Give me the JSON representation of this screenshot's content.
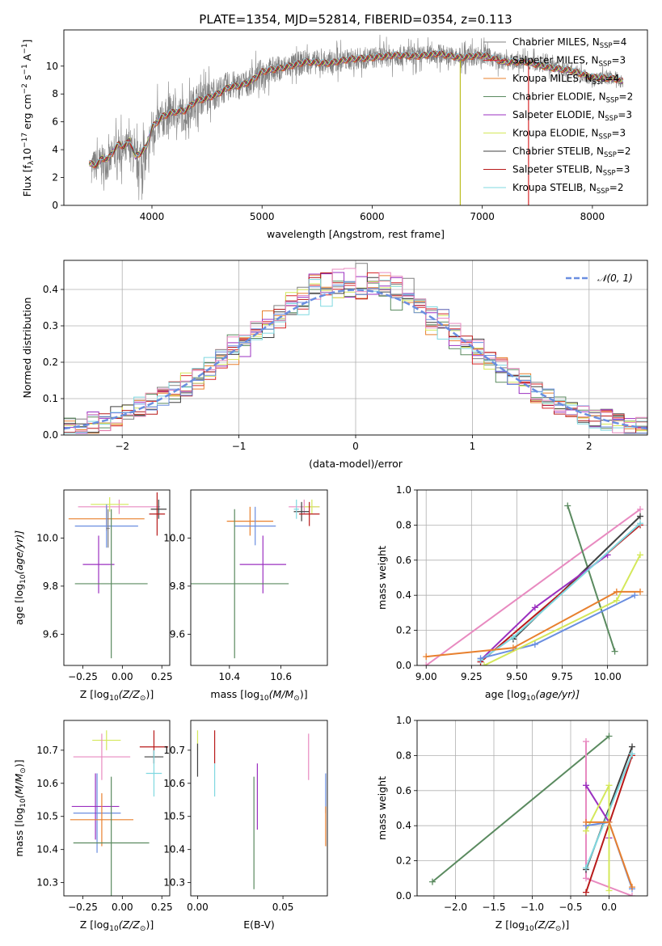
{
  "chart_data": [
    {
      "type": "line",
      "title": "PLATE=1354, MJD=52814, FIBERID=0354, z=0.113",
      "xlabel": "wavelength [Angstrom, rest frame]",
      "ylabel_parts": [
        "Flux [f",
        "λ",
        "10",
        "−17",
        " erg cm",
        "−2",
        " s",
        "−1",
        " A",
        "−1",
        "]"
      ],
      "xlim": [
        3200,
        8500
      ],
      "ylim": [
        0,
        12.6
      ],
      "xticks": [
        4000,
        5000,
        6000,
        7000,
        8000
      ],
      "yticks": [
        0,
        2,
        4,
        6,
        8,
        10
      ],
      "data_color": "#808080",
      "data_spectrum": {
        "x": [
          3450,
          3500,
          3550,
          3600,
          3650,
          3700,
          3750,
          3800,
          3850,
          3900,
          3950,
          4000,
          4100,
          4200,
          4300,
          4400,
          4500,
          4600,
          4700,
          4800,
          4900,
          5000,
          5200,
          5400,
          5600,
          5800,
          6000,
          6200,
          6400,
          6600,
          6800,
          7000,
          7200,
          7400,
          7600,
          7800,
          8000,
          8200,
          8280
        ],
        "y": [
          2.8,
          2.9,
          3.2,
          3.0,
          3.6,
          4.2,
          3.8,
          4.4,
          3.0,
          3.5,
          3.3,
          5.5,
          6.2,
          6.7,
          6.5,
          7.6,
          7.8,
          8.1,
          8.6,
          8.6,
          8.9,
          9.6,
          9.9,
          10.3,
          10.2,
          10.5,
          10.6,
          10.8,
          10.7,
          10.9,
          10.6,
          10.8,
          10.3,
          10.3,
          10.0,
          9.7,
          9.1,
          9.2,
          8.8
        ],
        "noise": [
          1.2,
          1.2,
          1.2,
          1.3,
          1.3,
          1.3,
          1.2,
          1.3,
          1.4,
          1.8,
          1.6,
          1.5,
          1.4,
          1.3,
          1.3,
          1.2,
          1.2,
          1.1,
          1.1,
          1.0,
          1.0,
          1.0,
          0.9,
          0.9,
          0.8,
          0.8,
          0.8,
          0.8,
          0.7,
          0.7,
          0.7,
          0.7,
          0.6,
          0.6,
          0.5,
          0.5,
          0.5,
          0.5,
          0.5
        ]
      },
      "model": {
        "x": [
          3430,
          3500,
          3550,
          3600,
          3650,
          3700,
          3750,
          3800,
          3850,
          3900,
          3950,
          4000,
          4100,
          4200,
          4300,
          4400,
          4500,
          4600,
          4700,
          4800,
          4900,
          5000,
          5200,
          5400,
          5600,
          5800,
          6000,
          6200,
          6400,
          6600,
          6800,
          7000,
          7200,
          7400,
          7600,
          7800,
          8000,
          8200,
          8280
        ],
        "y": [
          3.0,
          2.9,
          3.4,
          3.3,
          3.9,
          4.4,
          4.2,
          4.7,
          3.5,
          3.8,
          4.2,
          5.6,
          6.4,
          6.7,
          6.8,
          7.5,
          7.7,
          8.0,
          8.5,
          8.6,
          8.9,
          9.6,
          9.9,
          10.3,
          10.2,
          10.5,
          10.6,
          10.8,
          10.7,
          10.9,
          10.6,
          10.8,
          10.3,
          10.3,
          9.9,
          9.7,
          9.2,
          9.1,
          8.9
        ]
      },
      "glitches": [
        {
          "x": 6800,
          "y_low": 0,
          "y_high": 10.6,
          "color": "#bcbd22"
        },
        {
          "x": 7420,
          "y_low": 0,
          "y_high": 10.3,
          "color": "#d62728"
        }
      ],
      "series": [
        {
          "name": "Chabrier MILES, N",
          "sub": "SSP",
          "suffix": "=4",
          "color": "#808080"
        },
        {
          "name": "Salpeter MILES, N",
          "sub": "SSP",
          "suffix": "=3",
          "color": "#d62728"
        },
        {
          "name": "Kroupa MILES, N",
          "sub": "SSP",
          "suffix": "=4",
          "color": "#e8802e"
        },
        {
          "name": "Chabrier ELODIE, N",
          "sub": "SSP",
          "suffix": "=2",
          "color": "#5a8a5f"
        },
        {
          "name": "Salpeter ELODIE, N",
          "sub": "SSP",
          "suffix": "=3",
          "color": "#9b30c0"
        },
        {
          "name": "Kroupa ELODIE, N",
          "sub": "SSP",
          "suffix": "=3",
          "color": "#d4e85a"
        },
        {
          "name": "Chabrier STELIB, N",
          "sub": "SSP",
          "suffix": "=2",
          "color": "#404040"
        },
        {
          "name": "Salpeter STELIB, N",
          "sub": "SSP",
          "suffix": "=3",
          "color": "#b81a1a"
        },
        {
          "name": "Kroupa STELIB, N",
          "sub": "SSP",
          "suffix": "=2",
          "color": "#7fd8e0"
        }
      ]
    },
    {
      "type": "histogram",
      "xlabel": "(data-model)/error",
      "ylabel": "Normed distribution",
      "xlim": [
        -2.5,
        2.5
      ],
      "ylim": [
        0,
        0.48
      ],
      "xticks": [
        -2,
        -1,
        0,
        1,
        2
      ],
      "xtick_labels": [
        "−2",
        "−1",
        "0",
        "1",
        "2"
      ],
      "yticks": [
        0.0,
        0.1,
        0.2,
        0.3,
        0.4
      ],
      "grid": true,
      "bin_start": -2.5,
      "bin_width": 0.1,
      "colors": [
        "#808080",
        "#d62728",
        "#e8802e",
        "#5a8a5f",
        "#9b30c0",
        "#d4e85a",
        "#404040",
        "#b81a1a",
        "#7fd8e0",
        "#6a8ee0",
        "#e88ac0"
      ],
      "gaussian": {
        "label": "𝒩(0, 1)",
        "mean": 0,
        "sigma": 1,
        "color": "#6a8ee0"
      },
      "legend_loc": "upper right"
    },
    {
      "type": "scatter",
      "xlabel": "Z [log",
      "xlabel_sub": "10",
      "xlabel_tail": "(Z/Z",
      "xlabel_odot": "⊙",
      "xlabel_end": ")]",
      "ylabel": "age  [log",
      "ylabel_sub": "10",
      "ylabel_tail": "(age/yr)]",
      "xlim": [
        -0.37,
        0.3
      ],
      "ylim": [
        9.47,
        10.2
      ],
      "xticks": [
        -0.25,
        0.0,
        0.25
      ],
      "xtick_labels": [
        "−0.25",
        "0.00",
        "0.25"
      ],
      "yticks": [
        9.6,
        9.8,
        10.0
      ],
      "points": [
        {
          "x": -0.02,
          "y": 10.13,
          "xerr": 0.26,
          "yerr": 0.03,
          "color": "#e88ac0"
        },
        {
          "x": -0.08,
          "y": 10.14,
          "xerr": 0.12,
          "yerr": 0.03,
          "color": "#d4e85a"
        },
        {
          "x": -0.1,
          "y": 10.08,
          "xerr": 0.24,
          "yerr": 0.05,
          "color": "#e8802e"
        },
        {
          "x": -0.1,
          "y": 10.05,
          "xerr": 0.2,
          "yerr": 0.09,
          "color": "#6a8ee0"
        },
        {
          "x": 0.23,
          "y": 10.12,
          "xerr": 0.05,
          "yerr": 0.04,
          "color": "#404040"
        },
        {
          "x": 0.22,
          "y": 10.1,
          "xerr": 0.05,
          "yerr": 0.09,
          "color": "#b81a1a"
        },
        {
          "x": -0.09,
          "y": 10.04,
          "xerr": 0.01,
          "yerr": 0.08,
          "color": "#808080"
        },
        {
          "x": -0.15,
          "y": 9.89,
          "xerr": 0.1,
          "yerr": 0.12,
          "color": "#9b30c0"
        },
        {
          "x": -0.07,
          "y": 9.81,
          "xerr": 0.23,
          "yerr": 0.31,
          "color": "#5a8a5f"
        }
      ]
    },
    {
      "type": "scatter",
      "xlabel": "mass [log",
      "xlabel_sub": "10",
      "xlabel_tail": "(M/M",
      "xlabel_odot": "⊙",
      "xlabel_end": ")]",
      "xlim": [
        10.25,
        10.78
      ],
      "ylim": [
        9.47,
        10.2
      ],
      "xticks": [
        10.4,
        10.6
      ],
      "xtick_labels": [
        "10.4",
        "10.6"
      ],
      "yticks": [
        9.6,
        9.8,
        10.0
      ],
      "points": [
        {
          "x": 10.69,
          "y": 10.13,
          "xerr": 0.06,
          "yerr": 0.03,
          "color": "#e88ac0"
        },
        {
          "x": 10.72,
          "y": 10.13,
          "xerr": 0.03,
          "yerr": 0.03,
          "color": "#d4e85a"
        },
        {
          "x": 10.48,
          "y": 10.07,
          "xerr": 0.09,
          "yerr": 0.06,
          "color": "#e8802e"
        },
        {
          "x": 10.5,
          "y": 10.05,
          "xerr": 0.08,
          "yerr": 0.08,
          "color": "#6a8ee0"
        },
        {
          "x": 10.68,
          "y": 10.11,
          "xerr": 0.03,
          "yerr": 0.04,
          "color": "#404040"
        },
        {
          "x": 10.71,
          "y": 10.1,
          "xerr": 0.04,
          "yerr": 0.05,
          "color": "#b81a1a"
        },
        {
          "x": 10.66,
          "y": 10.12,
          "xerr": 0.01,
          "yerr": 0.04,
          "color": "#7fd8e0"
        },
        {
          "x": 10.53,
          "y": 9.89,
          "xerr": 0.09,
          "yerr": 0.12,
          "color": "#9b30c0"
        },
        {
          "x": 10.42,
          "y": 9.81,
          "xerr": 0.21,
          "yerr": 0.31,
          "color": "#5a8a5f"
        }
      ]
    },
    {
      "type": "line",
      "xlabel": "age  [log",
      "xlabel_sub": "10",
      "xlabel_tail": "(age/yr)]",
      "ylabel": "mass weight",
      "xlim": [
        8.95,
        10.22
      ],
      "ylim": [
        0,
        1.0
      ],
      "xticks": [
        9.0,
        9.25,
        9.5,
        9.75,
        10.0
      ],
      "xtick_labels": [
        "9.00",
        "9.25",
        "9.50",
        "9.75",
        "10.00"
      ],
      "yticks": [
        0.0,
        0.2,
        0.4,
        0.6,
        0.8,
        1.0
      ],
      "grid": true,
      "series": [
        {
          "color": "#e88ac0",
          "x": [
            9.0,
            10.18
          ],
          "y": [
            0.0,
            0.89
          ]
        },
        {
          "color": "#5a8a5f",
          "x": [
            9.78,
            10.04
          ],
          "y": [
            0.91,
            0.08
          ]
        },
        {
          "color": "#404040",
          "x": [
            9.48,
            10.18
          ],
          "y": [
            0.15,
            0.85
          ]
        },
        {
          "color": "#b81a1a",
          "x": [
            9.3,
            10.18
          ],
          "y": [
            0.02,
            0.8
          ]
        },
        {
          "color": "#9b30c0",
          "x": [
            9.3,
            9.6,
            10.0
          ],
          "y": [
            0.03,
            0.33,
            0.63
          ]
        },
        {
          "color": "#7fd8e0",
          "x": [
            9.3,
            9.48,
            10.18
          ],
          "y": [
            0.03,
            0.16,
            0.81
          ]
        },
        {
          "color": "#6a8ee0",
          "x": [
            9.3,
            9.6,
            10.15
          ],
          "y": [
            0.04,
            0.12,
            0.4
          ]
        },
        {
          "color": "#d4e85a",
          "x": [
            9.32,
            10.05,
            10.18
          ],
          "y": [
            0.0,
            0.37,
            0.63
          ]
        },
        {
          "color": "#e8802e",
          "x": [
            9.0,
            9.48,
            10.05,
            10.18
          ],
          "y": [
            0.05,
            0.1,
            0.42,
            0.42
          ]
        }
      ]
    },
    {
      "type": "scatter",
      "xlabel": "Z [log",
      "xlabel_sub": "10",
      "xlabel_tail": "(Z/Z",
      "xlabel_odot": "⊙",
      "xlabel_end": ")]",
      "ylabel": "mass [log",
      "ylabel_sub": "10",
      "ylabel_tail": "(M/M",
      "ylabel_odot": "⊙",
      "ylabel_end": ")]",
      "xlim": [
        -0.37,
        0.3
      ],
      "ylim": [
        10.26,
        10.79
      ],
      "xticks": [
        -0.25,
        0.0,
        0.25
      ],
      "xtick_labels": [
        "−0.25",
        "0.00",
        "0.25"
      ],
      "yticks": [
        10.3,
        10.4,
        10.5,
        10.6,
        10.7
      ],
      "points": [
        {
          "x": -0.1,
          "y": 10.73,
          "xerr": 0.09,
          "yerr": 0.03,
          "color": "#d4e85a"
        },
        {
          "x": -0.13,
          "y": 10.68,
          "xerr": 0.18,
          "yerr": 0.07,
          "color": "#e88ac0"
        },
        {
          "x": 0.2,
          "y": 10.71,
          "xerr": 0.09,
          "yerr": 0.05,
          "color": "#b81a1a"
        },
        {
          "x": 0.2,
          "y": 10.68,
          "xerr": 0.06,
          "yerr": 0.02,
          "color": "#404040"
        },
        {
          "x": 0.2,
          "y": 10.63,
          "xerr": 0.05,
          "yerr": 0.07,
          "color": "#7fd8e0"
        },
        {
          "x": -0.16,
          "y": 10.51,
          "xerr": 0.15,
          "yerr": 0.12,
          "color": "#6a8ee0"
        },
        {
          "x": -0.17,
          "y": 10.53,
          "xerr": 0.15,
          "yerr": 0.1,
          "color": "#9b30c0"
        },
        {
          "x": -0.13,
          "y": 10.49,
          "xerr": 0.2,
          "yerr": 0.08,
          "color": "#e8802e"
        },
        {
          "x": -0.07,
          "y": 10.42,
          "xerr": 0.24,
          "yerr": 0.2,
          "color": "#5a8a5f"
        }
      ]
    },
    {
      "type": "scatter",
      "xlabel": "E(B-V)",
      "xlim": [
        -0.004,
        0.076
      ],
      "ylim": [
        10.26,
        10.79
      ],
      "xticks": [
        0.0,
        0.05
      ],
      "xtick_labels": [
        "0.00",
        "0.05"
      ],
      "yticks": [
        10.3,
        10.4,
        10.5,
        10.6,
        10.7
      ],
      "points": [
        {
          "x": 0.0,
          "y": 10.73,
          "xerr": 0,
          "yerr": 0.03,
          "color": "#d4e85a"
        },
        {
          "x": 0.0,
          "y": 10.67,
          "xerr": 0,
          "yerr": 0.05,
          "color": "#404040"
        },
        {
          "x": 0.01,
          "y": 10.71,
          "xerr": 0,
          "yerr": 0.05,
          "color": "#b81a1a"
        },
        {
          "x": 0.01,
          "y": 10.61,
          "xerr": 0,
          "yerr": 0.05,
          "color": "#7fd8e0"
        },
        {
          "x": 0.035,
          "y": 10.56,
          "xerr": 0,
          "yerr": 0.1,
          "color": "#9b30c0"
        },
        {
          "x": 0.033,
          "y": 10.45,
          "xerr": 0,
          "yerr": 0.17,
          "color": "#5a8a5f"
        },
        {
          "x": 0.065,
          "y": 10.68,
          "xerr": 0,
          "yerr": 0.07,
          "color": "#e88ac0"
        },
        {
          "x": 0.075,
          "y": 10.57,
          "xerr": 0,
          "yerr": 0.06,
          "color": "#6a8ee0"
        },
        {
          "x": 0.075,
          "y": 10.47,
          "xerr": 0,
          "yerr": 0.06,
          "color": "#e8802e"
        }
      ]
    },
    {
      "type": "line",
      "xlabel": "Z [log",
      "xlabel_sub": "10",
      "xlabel_tail": "(Z/Z",
      "xlabel_odot": "⊙",
      "xlabel_end": ")]",
      "ylabel": "mass weight",
      "xlim": [
        -2.5,
        0.5
      ],
      "ylim": [
        0,
        1.0
      ],
      "xticks": [
        -2.0,
        -1.5,
        -1.0,
        -0.5,
        0.0
      ],
      "xtick_labels": [
        "−2.0",
        "−1.5",
        "−1.0",
        "−0.5",
        "0.0"
      ],
      "yticks": [
        0.0,
        0.2,
        0.4,
        0.6,
        0.8,
        1.0
      ],
      "grid": true,
      "series": [
        {
          "color": "#5a8a5f",
          "x": [
            -2.3,
            0.0
          ],
          "y": [
            0.08,
            0.91
          ]
        },
        {
          "color": "#e88ac0",
          "x": [
            -0.3,
            -0.3,
            0.3
          ],
          "y": [
            0.88,
            0.1,
            0.0
          ]
        },
        {
          "color": "#404040",
          "x": [
            -0.3,
            0.3
          ],
          "y": [
            0.15,
            0.85
          ]
        },
        {
          "color": "#b81a1a",
          "x": [
            -0.3,
            0.3
          ],
          "y": [
            0.02,
            0.8
          ]
        },
        {
          "color": "#7fd8e0",
          "x": [
            -0.3,
            0.3
          ],
          "y": [
            0.16,
            0.81
          ]
        },
        {
          "color": "#9b30c0",
          "x": [
            -0.3,
            0.0,
            0.0
          ],
          "y": [
            0.63,
            0.42,
            0.33
          ]
        },
        {
          "color": "#d4e85a",
          "x": [
            -0.3,
            0.0,
            0.0
          ],
          "y": [
            0.37,
            0.63,
            0.03
          ]
        },
        {
          "color": "#6a8ee0",
          "x": [
            -0.3,
            0.0,
            0.3
          ],
          "y": [
            0.4,
            0.42,
            0.04
          ]
        },
        {
          "color": "#e8802e",
          "x": [
            -0.3,
            0.0,
            0.3
          ],
          "y": [
            0.42,
            0.42,
            0.05
          ]
        }
      ]
    }
  ]
}
